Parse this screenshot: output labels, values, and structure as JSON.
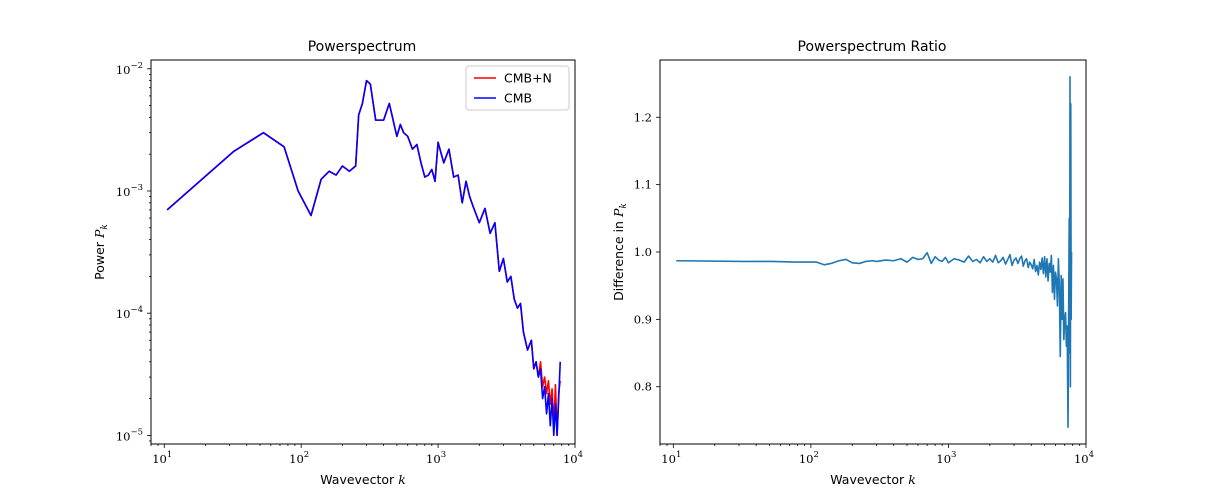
{
  "chart_data": [
    {
      "type": "line",
      "title": "Powerspectrum",
      "xlabel": "Wavevector",
      "xlabel_var": "k",
      "ylabel": "Power",
      "ylabel_var": "P",
      "ylabel_sub": "k",
      "xscale": "log",
      "yscale": "log",
      "xlim": [
        8.0,
        10000
      ],
      "ylim": [
        8.5e-06,
        0.0118
      ],
      "x_ticks": [
        {
          "base": "10",
          "exp": "1",
          "value": 10
        },
        {
          "base": "10",
          "exp": "2",
          "value": 100
        },
        {
          "base": "10",
          "exp": "3",
          "value": 1000
        },
        {
          "base": "10",
          "exp": "4",
          "value": 10000
        }
      ],
      "y_ticks": [
        {
          "base": "10",
          "exp": "−5",
          "value": 1e-05
        },
        {
          "base": "10",
          "exp": "−4",
          "value": 0.0001
        },
        {
          "base": "10",
          "exp": "−3",
          "value": 0.001
        },
        {
          "base": "10",
          "exp": "−2",
          "value": 0.01
        }
      ],
      "legend": {
        "position": "upper right",
        "entries": [
          {
            "label": "CMB+N",
            "color": "#ff0000"
          },
          {
            "label": "CMB",
            "color": "#0000ff"
          }
        ]
      },
      "grid": false,
      "series": [
        {
          "name": "CMB+N",
          "color": "#ff0000",
          "x": [
            10.5,
            32,
            53,
            75,
            95,
            118,
            140,
            160,
            180,
            200,
            225,
            250,
            263,
            280,
            300,
            320,
            350,
            400,
            440,
            460,
            480,
            500,
            530,
            560,
            600,
            650,
            700,
            750,
            800,
            850,
            900,
            950,
            1000,
            1100,
            1200,
            1300,
            1400,
            1500,
            1600,
            1700,
            1800,
            2000,
            2200,
            2400,
            2600,
            2800,
            3000,
            3200,
            3400,
            3600,
            3800,
            4000,
            4200,
            4500,
            4800,
            5000,
            5200,
            5400,
            5600,
            5800,
            6000,
            6200,
            6400,
            6600,
            6800,
            7000,
            7200,
            7400,
            7600,
            7800
          ],
          "y": [
            0.0007,
            0.0021,
            0.003,
            0.0023,
            0.001,
            0.00063,
            0.00125,
            0.00145,
            0.00135,
            0.0016,
            0.00145,
            0.0016,
            0.0042,
            0.0052,
            0.008,
            0.0075,
            0.0038,
            0.0038,
            0.0052,
            0.0042,
            0.0034,
            0.0028,
            0.0035,
            0.003,
            0.0028,
            0.0022,
            0.0024,
            0.0017,
            0.0013,
            0.00135,
            0.0015,
            0.0012,
            0.0025,
            0.0017,
            0.0022,
            0.0013,
            0.00135,
            0.0008,
            0.0012,
            0.0009,
            0.00075,
            0.00055,
            0.00072,
            0.00045,
            0.00055,
            0.00022,
            0.00028,
            0.00018,
            0.0002,
            0.00013,
            0.00011,
            0.00012,
            7e-05,
            5e-05,
            6e-05,
            3.5e-05,
            4e-05,
            3e-05,
            4e-05,
            2.5e-05,
            3e-05,
            2.2e-05,
            2.8e-05,
            1.8e-05,
            2.4e-05,
            1.2e-05,
            2.6e-05,
            1e-05,
            2.2e-05,
            2.8e-05
          ]
        },
        {
          "name": "CMB",
          "color": "#0000ff",
          "x": [
            10.5,
            32,
            53,
            75,
            95,
            118,
            140,
            160,
            180,
            200,
            225,
            250,
            263,
            280,
            300,
            320,
            350,
            400,
            440,
            460,
            480,
            500,
            530,
            560,
            600,
            650,
            700,
            750,
            800,
            850,
            900,
            950,
            1000,
            1100,
            1200,
            1300,
            1400,
            1500,
            1600,
            1700,
            1800,
            2000,
            2200,
            2400,
            2600,
            2800,
            3000,
            3200,
            3400,
            3600,
            3800,
            4000,
            4200,
            4500,
            4800,
            5000,
            5200,
            5400,
            5600,
            5800,
            6000,
            6200,
            6400,
            6600,
            6800,
            7000,
            7200,
            7400,
            7600,
            7800
          ],
          "y": [
            0.0007,
            0.0021,
            0.003,
            0.0023,
            0.001,
            0.00063,
            0.00125,
            0.00145,
            0.00135,
            0.0016,
            0.00145,
            0.0016,
            0.0042,
            0.0052,
            0.008,
            0.0075,
            0.0038,
            0.0038,
            0.0052,
            0.0042,
            0.0034,
            0.0028,
            0.0035,
            0.003,
            0.0028,
            0.0022,
            0.0024,
            0.0017,
            0.0013,
            0.00135,
            0.0015,
            0.0012,
            0.0025,
            0.0017,
            0.0022,
            0.0013,
            0.00135,
            0.0008,
            0.0012,
            0.0009,
            0.00075,
            0.00055,
            0.00072,
            0.00045,
            0.00055,
            0.00022,
            0.00028,
            0.00018,
            0.0002,
            0.00013,
            0.00011,
            0.00012,
            7e-05,
            5e-05,
            6e-05,
            3.5e-05,
            4e-05,
            3e-05,
            3.5e-05,
            2e-05,
            2.5e-05,
            1.5e-05,
            2.2e-05,
            1.2e-05,
            2e-05,
            1e-05,
            1.8e-05,
            1e-05,
            2e-05,
            4e-05
          ]
        }
      ]
    },
    {
      "type": "line",
      "title": "Powerspectrum Ratio",
      "xlabel": "Wavevector",
      "xlabel_var": "k",
      "ylabel": "Difference in",
      "ylabel_var": "P",
      "ylabel_sub": "k",
      "xscale": "log",
      "yscale": "linear",
      "xlim": [
        8.0,
        10000
      ],
      "ylim": [
        0.715,
        1.285
      ],
      "x_ticks": [
        {
          "base": "10",
          "exp": "1",
          "value": 10
        },
        {
          "base": "10",
          "exp": "2",
          "value": 100
        },
        {
          "base": "10",
          "exp": "3",
          "value": 1000
        },
        {
          "base": "10",
          "exp": "4",
          "value": 10000
        }
      ],
      "y_ticks": [
        {
          "label": "0.8",
          "value": 0.8
        },
        {
          "label": "0.9",
          "value": 0.9
        },
        {
          "label": "1.0",
          "value": 1.0
        },
        {
          "label": "1.1",
          "value": 1.1
        },
        {
          "label": "1.2",
          "value": 1.2
        }
      ],
      "grid": false,
      "series": [
        {
          "color": "#1f77b4",
          "x": [
            10.5,
            32,
            53,
            75,
            95,
            110,
            125,
            140,
            160,
            180,
            200,
            225,
            250,
            280,
            300,
            350,
            400,
            450,
            500,
            550,
            600,
            650,
            700,
            750,
            800,
            850,
            900,
            950,
            1000,
            1100,
            1200,
            1300,
            1400,
            1500,
            1600,
            1700,
            1800,
            1900,
            2000,
            2100,
            2200,
            2300,
            2400,
            2500,
            2600,
            2700,
            2800,
            2900,
            3000,
            3100,
            3200,
            3300,
            3400,
            3500,
            3600,
            3700,
            3800,
            3900,
            4000,
            4100,
            4200,
            4300,
            4400,
            4500,
            4600,
            4700,
            4800,
            4900,
            5000,
            5100,
            5200,
            5300,
            5400,
            5500,
            5600,
            5700,
            5800,
            5900,
            6000,
            6100,
            6200,
            6300,
            6400,
            6500,
            6600,
            6700,
            6800,
            6900,
            7000,
            7100,
            7200,
            7300,
            7400,
            7500,
            7550,
            7600,
            7650,
            7700,
            7750,
            7800,
            7850
          ],
          "y": [
            0.987,
            0.986,
            0.986,
            0.985,
            0.985,
            0.985,
            0.981,
            0.983,
            0.987,
            0.989,
            0.984,
            0.983,
            0.986,
            0.987,
            0.986,
            0.988,
            0.987,
            0.99,
            0.985,
            0.992,
            0.989,
            0.99,
            0.999,
            0.983,
            0.993,
            0.988,
            0.986,
            0.992,
            0.984,
            0.99,
            0.988,
            0.985,
            0.994,
            0.986,
            0.989,
            0.984,
            0.993,
            0.986,
            0.99,
            0.985,
            0.995,
            0.984,
            0.987,
            0.992,
            0.982,
            0.989,
            0.996,
            0.98,
            0.988,
            0.991,
            0.983,
            0.99,
            0.994,
            0.979,
            0.987,
            0.99,
            0.977,
            0.985,
            0.981,
            0.975,
            0.989,
            0.971,
            0.98,
            0.966,
            0.985,
            0.974,
            0.991,
            0.968,
            0.993,
            0.963,
            0.99,
            0.957,
            0.983,
            0.97,
            0.995,
            0.94,
            0.98,
            0.93,
            0.97,
            0.96,
            0.92,
            0.99,
            0.95,
            0.845,
            0.965,
            0.9,
            0.96,
            0.87,
            0.9,
            0.91,
            0.86,
            0.89,
            0.74,
            0.95,
            1.05,
            0.85,
            1.26,
            0.8,
            1.22,
            0.9,
            1.0
          ]
        }
      ]
    }
  ]
}
